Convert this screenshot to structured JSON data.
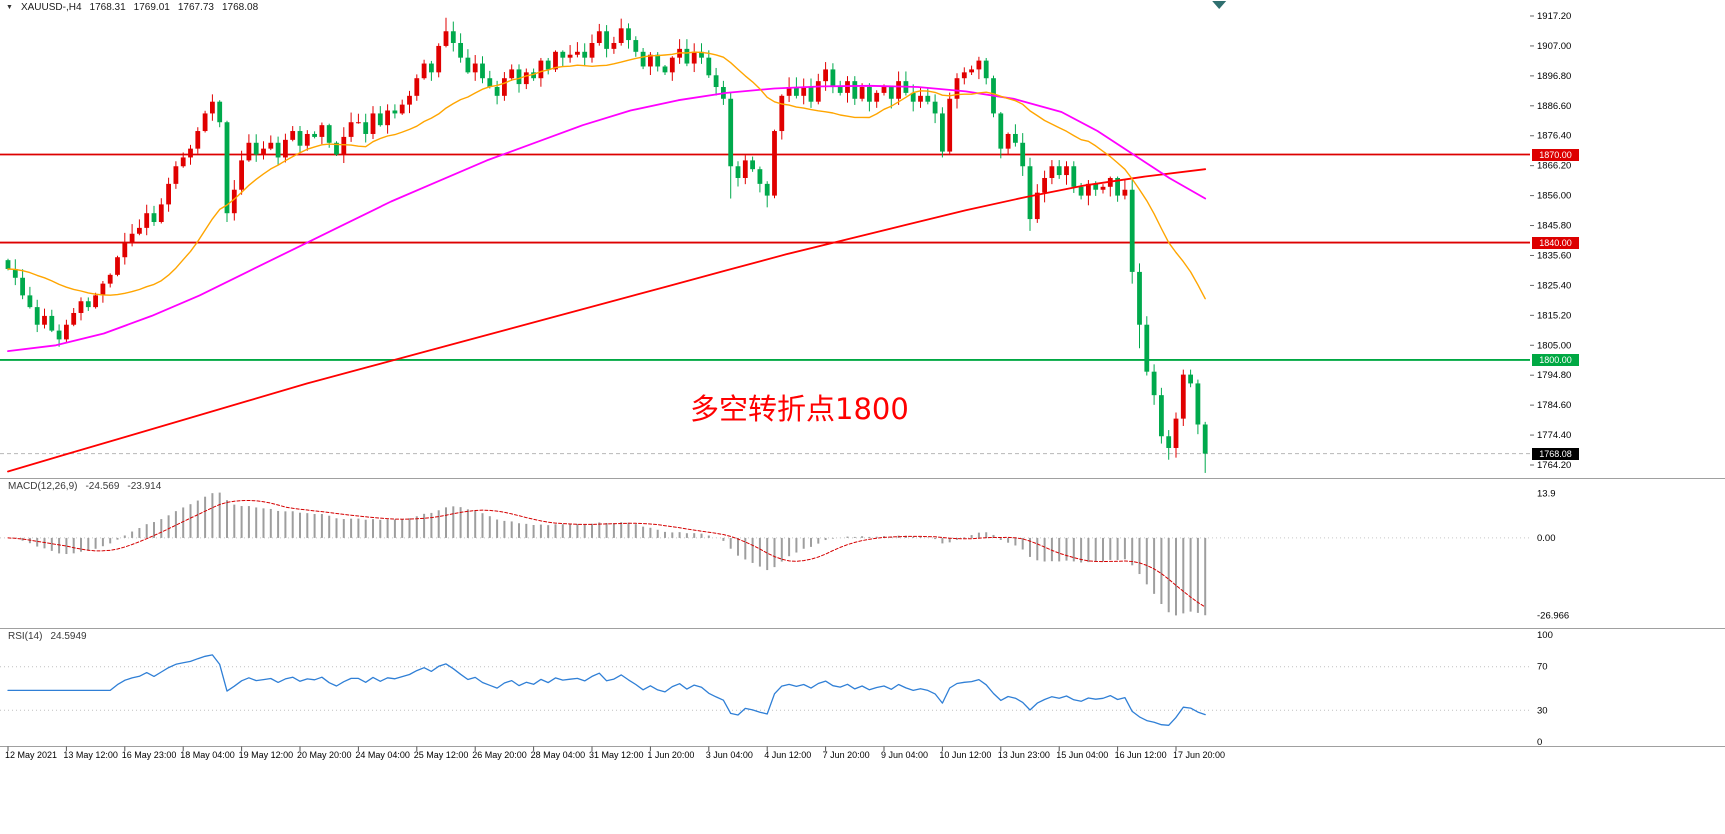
{
  "header": {
    "dropdown_icon": "▼",
    "symbol": "XAUUSD-,H4",
    "open": "1768.31",
    "high": "1769.01",
    "low": "1767.73",
    "close": "1768.08"
  },
  "macd_panel": {
    "title": "MACD(12,26,9)",
    "main_value": "-24.569",
    "signal_value": "-23.914"
  },
  "rsi_panel": {
    "title": "RSI(14)",
    "value": "24.5949"
  },
  "colors": {
    "bull": "#E00000",
    "bear": "#00A94C",
    "ma_fast": "#FFA500",
    "ma_mid": "#FF00FF",
    "ma_long": "#FF0000",
    "macd_hist": "#9E9E9E",
    "macd_signal": "#D40000",
    "rsi": "#2F7FD6",
    "level_dotted": "#C0C0C0",
    "separator": "#A0A0A0",
    "axis_text": "#000000",
    "tag_black": "#000000",
    "shift_marker": "#2F6F6F",
    "bid_line": "#B8B8B8"
  },
  "chart_data": {
    "type": "candlestick",
    "symbol": "XAUUSD-",
    "timeframe": "H4",
    "current_bar": {
      "open": 1768.31,
      "high": 1769.01,
      "low": 1767.73,
      "close": 1768.08
    },
    "first_open": 1834,
    "closes": [
      1831,
      1828,
      1822,
      1818,
      1812,
      1815,
      1810,
      1807,
      1812,
      1816,
      1820,
      1818,
      1822,
      1826,
      1829,
      1835,
      1840,
      1843,
      1845,
      1850,
      1847,
      1853,
      1860,
      1866,
      1869,
      1872,
      1878,
      1884,
      1888,
      1881,
      1850,
      1858,
      1868,
      1874,
      1870,
      1872,
      1874,
      1869,
      1875,
      1878,
      1873,
      1877,
      1876,
      1880,
      1874,
      1870,
      1876,
      1881,
      1881,
      1877,
      1884,
      1880,
      1885,
      1884,
      1887,
      1890,
      1896,
      1901,
      1898,
      1907,
      1912,
      1908,
      1903,
      1898,
      1901,
      1896,
      1893,
      1890,
      1896,
      1899,
      1894,
      1898,
      1896,
      1902,
      1899,
      1905,
      1903,
      1904,
      1905,
      1903,
      1908,
      1912,
      1906,
      1908,
      1913,
      1909,
      1905,
      1900,
      1904,
      1900,
      1898,
      1903,
      1906,
      1901,
      1905,
      1903,
      1897,
      1893,
      1889,
      1866,
      1862,
      1868,
      1865,
      1860,
      1856,
      1878,
      1890,
      1893,
      1890,
      1893,
      1888,
      1895,
      1899,
      1893,
      1891,
      1895,
      1889,
      1893,
      1888,
      1891,
      1893,
      1889,
      1895,
      1891,
      1888,
      1890,
      1888,
      1884,
      1871,
      1889,
      1896,
      1898,
      1899,
      1902,
      1896,
      1884,
      1872,
      1877,
      1874,
      1866,
      1848,
      1857,
      1862,
      1866,
      1863,
      1866,
      1859,
      1856,
      1860,
      1858,
      1859,
      1862,
      1856,
      1858,
      1830,
      1812,
      1796,
      1788,
      1774,
      1770,
      1780,
      1795,
      1792,
      1778,
      1768.08
    ],
    "wick_overrides": {
      "28": {
        "high": 1890.5
      },
      "30": {
        "low": 1847
      },
      "60": {
        "high": 1916.6
      },
      "84": {
        "high": 1916.3
      },
      "99": {
        "low": 1855
      },
      "104": {
        "low": 1852
      },
      "128": {
        "low": 1869
      },
      "140": {
        "low": 1844
      },
      "154": {
        "low": 1826
      },
      "155": {
        "low": 1804
      },
      "159": {
        "low": 1766
      },
      "164": {
        "low": 1761.5
      }
    },
    "y_axis_labels": [
      "1917.20",
      "1907.00",
      "1896.80",
      "1886.60",
      "1876.40",
      "1866.20",
      "1856.00",
      "1845.80",
      "1835.60",
      "1825.40",
      "1815.20",
      "1805.00",
      "1794.80",
      "1784.60",
      "1774.40",
      "1764.20"
    ],
    "time_labels": [
      "12 May 2021",
      "13 May 12:00",
      "16 May 23:00",
      "18 May 04:00",
      "19 May 12:00",
      "20 May 20:00",
      "24 May 04:00",
      "25 May 12:00",
      "26 May 20:00",
      "28 May 04:00",
      "31 May 12:00",
      "1 Jun 20:00",
      "3 Jun 04:00",
      "4 Jun 12:00",
      "7 Jun 20:00",
      "9 Jun 04:00",
      "10 Jun 12:00",
      "13 Jun 23:00",
      "15 Jun 04:00",
      "16 Jun 12:00",
      "17 Jun 20:00"
    ],
    "label_every_n_candles": 8,
    "moving_averages": [
      {
        "name": "fast-ma",
        "type": "sma",
        "period": 20
      },
      {
        "name": "mid-ma",
        "type": "waypoints",
        "points": [
          [
            0,
            1803
          ],
          [
            0.04,
            1805
          ],
          [
            0.08,
            1809
          ],
          [
            0.12,
            1815
          ],
          [
            0.16,
            1822
          ],
          [
            0.2,
            1830
          ],
          [
            0.24,
            1838
          ],
          [
            0.28,
            1846
          ],
          [
            0.32,
            1854
          ],
          [
            0.36,
            1861
          ],
          [
            0.4,
            1868
          ],
          [
            0.44,
            1874
          ],
          [
            0.48,
            1880
          ],
          [
            0.52,
            1885
          ],
          [
            0.56,
            1888.5
          ],
          [
            0.6,
            1891
          ],
          [
            0.64,
            1892.5
          ],
          [
            0.68,
            1893.2
          ],
          [
            0.72,
            1893.4
          ],
          [
            0.76,
            1893
          ],
          [
            0.8,
            1891.5
          ],
          [
            0.84,
            1889
          ],
          [
            0.88,
            1884.5
          ],
          [
            0.91,
            1878
          ],
          [
            0.94,
            1870
          ],
          [
            0.97,
            1862
          ],
          [
            1,
            1855
          ]
        ]
      },
      {
        "name": "long-ma",
        "type": "waypoints",
        "points": [
          [
            0,
            1762
          ],
          [
            0.05,
            1768
          ],
          [
            0.1,
            1774
          ],
          [
            0.15,
            1780
          ],
          [
            0.2,
            1786
          ],
          [
            0.25,
            1792
          ],
          [
            0.3,
            1797.5
          ],
          [
            0.35,
            1803
          ],
          [
            0.4,
            1808.5
          ],
          [
            0.45,
            1814
          ],
          [
            0.5,
            1819.5
          ],
          [
            0.55,
            1825
          ],
          [
            0.6,
            1830.5
          ],
          [
            0.65,
            1836
          ],
          [
            0.7,
            1841
          ],
          [
            0.75,
            1846
          ],
          [
            0.8,
            1851
          ],
          [
            0.85,
            1855.5
          ],
          [
            0.9,
            1859.5
          ],
          [
            0.95,
            1862.5
          ],
          [
            1,
            1865
          ]
        ]
      }
    ],
    "hlines": [
      {
        "value": 1870,
        "label": "1870.00",
        "color": "#DD0000"
      },
      {
        "value": 1840,
        "label": "1840.00",
        "color": "#DD0000"
      },
      {
        "value": 1800,
        "label": "1800.00",
        "color": "#00A843"
      }
    ],
    "last_price": {
      "value": 1768.08,
      "label": "1768.08"
    },
    "annotation": {
      "text": "多空转折点1800",
      "color": "#FF0000"
    },
    "macd": {
      "fast": 12,
      "slow": 26,
      "signal": 9
    },
    "macd_axis_labels": [
      "13.9",
      "0.00",
      "-26.966"
    ],
    "rsi": {
      "period": 14
    },
    "rsi_axis_labels": [
      "100",
      "70",
      "30",
      "0"
    ]
  }
}
